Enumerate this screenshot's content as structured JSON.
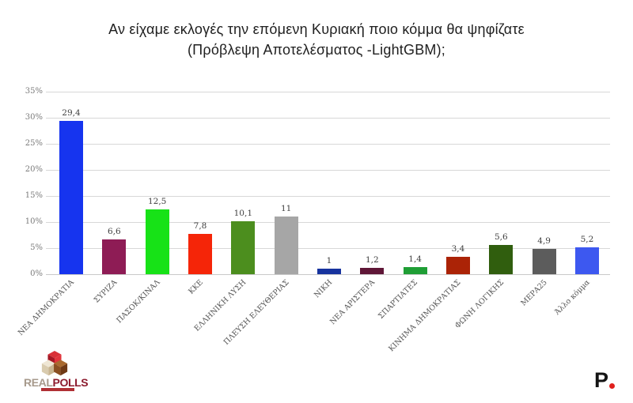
{
  "page": {
    "title_line1": "Αν είχαμε εκλογές την επόμενη Κυριακή ποιο κόμμα θα ψηφίζατε",
    "title_line2": "(Πρόβλεψη Αποτελέσματος -LightGBM);"
  },
  "chart_data": {
    "type": "bar",
    "title": "Αν είχαμε εκλογές την επόμενη Κυριακή ποιο κόμμα θα ψηφίζατε (Πρόβλεψη Αποτελέσματος -LightGBM);",
    "categories": [
      "ΝΕΑ ΔΗΜΟΚΡΑΤΙΑ",
      "ΣΥΡΙΖΑ",
      "ΠΑΣΟΚ/ΚΙΝΑΛ",
      "ΚΚΕ",
      "ΕΛΛΗΝΙΚΗ ΛΥΣΗ",
      "ΠΛΕΥΣΗ ΕΛΕΥΘΕΡΙΑΣ",
      "ΝΙΚΗ",
      "ΝΕΑ ΑΡΙΣΤΕΡΑ",
      "ΣΠΑΡΤΙΑΤΕΣ",
      "ΚΙΝΗΜΑ ΔΗΜΟΚΡΑΤΙΑΣ",
      "ΦΩΝΗ ΛΟΓΙΚΗΣ",
      "ΜΕΡΑ25",
      "Άλλο κόμμα"
    ],
    "values": [
      29.4,
      6.6,
      12.5,
      7.8,
      10.1,
      11,
      1,
      1.2,
      1.4,
      3.4,
      5.6,
      4.9,
      5.2
    ],
    "value_labels": [
      "29,4",
      "6,6",
      "12,5",
      "7,8",
      "10,1",
      "11",
      "1",
      "1,2",
      "1,4",
      "3,4",
      "5,6",
      "4,9",
      "5,2"
    ],
    "bar_colors": [
      "#1634ef",
      "#8e1c55",
      "#17e217",
      "#f52508",
      "#4c8e1e",
      "#a6a6a6",
      "#17339e",
      "#5f1637",
      "#1f9e35",
      "#ab2306",
      "#305e0e",
      "#5c5c5c",
      "#3d58f0"
    ],
    "y_ticks": [
      "0%",
      "5%",
      "10%",
      "15%",
      "20%",
      "25%",
      "30%",
      "35%"
    ],
    "ylim": [
      0,
      35
    ],
    "xlabel": "",
    "ylabel": "",
    "grid": true,
    "legend": false
  },
  "footer": {
    "brand_real": "REAL",
    "brand_polls": "POLLS",
    "p_mark": "P"
  },
  "colors": {
    "grid": "#d8d8d8",
    "axis_line": "#c9c9c9",
    "tick_label": "#7a7a7a",
    "value_label": "#404040",
    "x_label": "#555555",
    "title": "#1f1f1f",
    "brand_real": "#a79a8c",
    "brand_polls": "#8c1b2e",
    "tagline_strip": "#b03035",
    "p_dot": "#e0201d"
  }
}
